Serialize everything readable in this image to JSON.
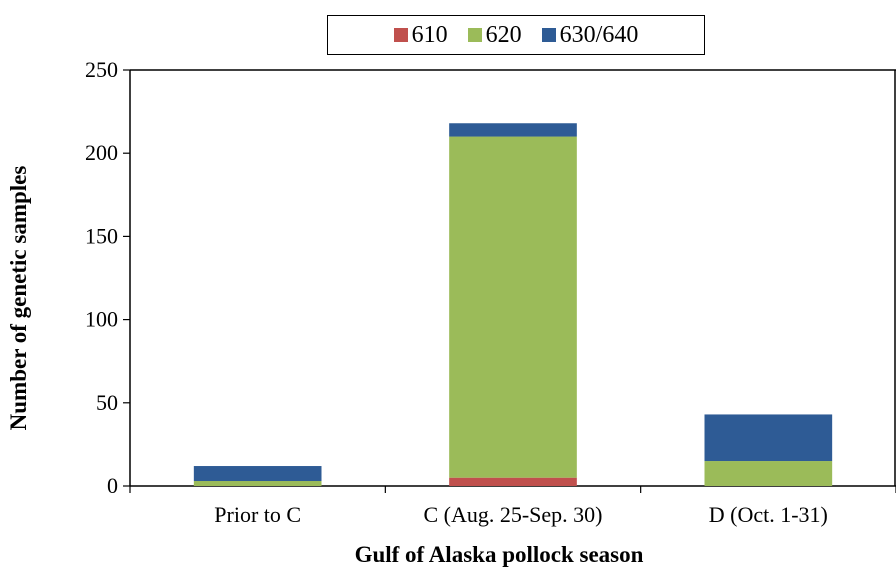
{
  "chart_data": {
    "type": "bar",
    "stacked": true,
    "categories": [
      "Prior to C",
      "C (Aug. 25-Sep. 30)",
      "D (Oct. 1-31)"
    ],
    "series": [
      {
        "name": "610",
        "color": "#c0504d",
        "values": [
          0,
          5,
          0
        ]
      },
      {
        "name": "620",
        "color": "#9bbb59",
        "values": [
          3,
          205,
          15
        ]
      },
      {
        "name": "630/640",
        "color": "#2e5b95",
        "values": [
          9,
          8,
          28
        ]
      }
    ],
    "xlabel": "Gulf of Alaska pollock season",
    "ylabel": "Number of genetic samples",
    "ylim": [
      0,
      250
    ],
    "yticks": [
      0,
      50,
      100,
      150,
      200,
      250
    ],
    "legend_position": "top-center",
    "grid": false
  }
}
